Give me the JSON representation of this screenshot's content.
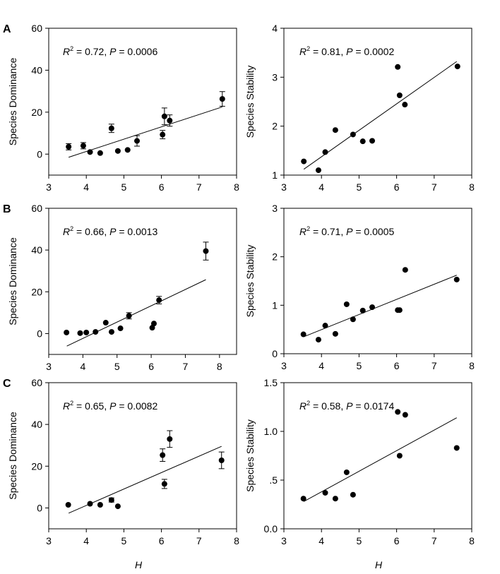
{
  "chart_data": [
    {
      "type": "scatter",
      "panel_label": "A",
      "xlabel": "",
      "ylabel": "Species Dominance",
      "xlim": [
        3,
        8
      ],
      "ylim": [
        -10,
        60
      ],
      "xticks": [
        "3",
        "4",
        "5",
        "6",
        "7",
        "8"
      ],
      "yticks": [
        "0",
        "20",
        "40",
        "60"
      ],
      "ytick_values": [
        0,
        20,
        40,
        60
      ],
      "annotation": {
        "r2": "0.72",
        "p": "0.0006"
      },
      "points": [
        {
          "x": 3.53,
          "y": 3.5,
          "err": 1.5
        },
        {
          "x": 3.92,
          "y": 4,
          "err": 1.5
        },
        {
          "x": 4.1,
          "y": 1,
          "err": 0
        },
        {
          "x": 4.37,
          "y": 0.5,
          "err": 0
        },
        {
          "x": 4.67,
          "y": 12.3,
          "err": 2
        },
        {
          "x": 4.84,
          "y": 1.5,
          "err": 0
        },
        {
          "x": 5.1,
          "y": 2,
          "err": 0
        },
        {
          "x": 5.35,
          "y": 6.3,
          "err": 2.5
        },
        {
          "x": 6.03,
          "y": 9.3,
          "err": 2
        },
        {
          "x": 6.08,
          "y": 18,
          "err": 4
        },
        {
          "x": 6.22,
          "y": 16,
          "err": 2.7
        },
        {
          "x": 7.62,
          "y": 26.3,
          "err": 3.5
        }
      ],
      "fit": [
        [
          3.53,
          -1.5
        ],
        [
          7.62,
          22.5
        ]
      ]
    },
    {
      "type": "scatter",
      "panel_label": "",
      "xlabel": "",
      "ylabel": "Species Stability",
      "xlim": [
        3,
        8
      ],
      "ylim": [
        1,
        4
      ],
      "xticks": [
        "3",
        "4",
        "5",
        "6",
        "7",
        "8"
      ],
      "yticks": [
        "1",
        "2",
        "3",
        "4"
      ],
      "ytick_values": [
        1,
        2,
        3,
        4
      ],
      "annotation": {
        "r2": "0.81",
        "p": "0.0002"
      },
      "points": [
        {
          "x": 3.53,
          "y": 1.28
        },
        {
          "x": 3.92,
          "y": 1.1
        },
        {
          "x": 4.1,
          "y": 1.47
        },
        {
          "x": 4.37,
          "y": 1.92
        },
        {
          "x": 4.84,
          "y": 1.83
        },
        {
          "x": 5.1,
          "y": 1.69
        },
        {
          "x": 5.35,
          "y": 1.7
        },
        {
          "x": 6.03,
          "y": 3.21
        },
        {
          "x": 6.08,
          "y": 2.63
        },
        {
          "x": 6.22,
          "y": 2.44
        },
        {
          "x": 7.62,
          "y": 3.22
        }
      ],
      "fit": [
        [
          3.53,
          1.12
        ],
        [
          7.6,
          3.32
        ]
      ]
    },
    {
      "type": "scatter",
      "panel_label": "B",
      "xlabel": "",
      "ylabel": "Species Dominance",
      "xlim": [
        3,
        8.5
      ],
      "ylim": [
        -10,
        60
      ],
      "xticks": [
        "3",
        "4",
        "5",
        "6",
        "7",
        "8"
      ],
      "yticks": [
        "0",
        "20",
        "40",
        "60"
      ],
      "ytick_values": [
        0,
        20,
        40,
        60
      ],
      "annotation": {
        "r2": "0.66",
        "p": "0.0013"
      },
      "points": [
        {
          "x": 3.52,
          "y": 0.5
        },
        {
          "x": 3.92,
          "y": 0.2
        },
        {
          "x": 4.1,
          "y": 0.5
        },
        {
          "x": 4.37,
          "y": 0.8
        },
        {
          "x": 4.67,
          "y": 5.2
        },
        {
          "x": 4.84,
          "y": 0.8
        },
        {
          "x": 5.1,
          "y": 2.5
        },
        {
          "x": 5.35,
          "y": 8.5,
          "err": 1.5
        },
        {
          "x": 6.03,
          "y": 2.8
        },
        {
          "x": 6.08,
          "y": 4.8
        },
        {
          "x": 6.23,
          "y": 16,
          "err": 1.8
        },
        {
          "x": 7.6,
          "y": 39.5,
          "err": 4.3
        }
      ],
      "fit": [
        [
          3.53,
          -6
        ],
        [
          7.6,
          25.8
        ]
      ]
    },
    {
      "type": "scatter",
      "panel_label": "",
      "xlabel": "",
      "ylabel": "Species Stability",
      "xlim": [
        3,
        8
      ],
      "ylim": [
        0,
        3
      ],
      "xticks": [
        "3",
        "4",
        "5",
        "6",
        "7",
        "8"
      ],
      "yticks": [
        "0",
        "1",
        "2",
        "3"
      ],
      "ytick_values": [
        0,
        1,
        2,
        3
      ],
      "annotation": {
        "r2": "0.71",
        "p": "0.0005"
      },
      "points": [
        {
          "x": 3.52,
          "y": 0.4
        },
        {
          "x": 3.92,
          "y": 0.29
        },
        {
          "x": 4.1,
          "y": 0.58
        },
        {
          "x": 4.37,
          "y": 0.41
        },
        {
          "x": 4.67,
          "y": 1.02
        },
        {
          "x": 4.84,
          "y": 0.71
        },
        {
          "x": 5.1,
          "y": 0.89
        },
        {
          "x": 5.35,
          "y": 0.96
        },
        {
          "x": 6.03,
          "y": 0.9
        },
        {
          "x": 6.08,
          "y": 0.9
        },
        {
          "x": 6.23,
          "y": 1.73
        },
        {
          "x": 7.6,
          "y": 1.53
        }
      ],
      "fit": [
        [
          3.53,
          0.35
        ],
        [
          7.6,
          1.62
        ]
      ]
    },
    {
      "type": "scatter",
      "panel_label": "C",
      "xlabel": "H",
      "ylabel": "Species Dominance",
      "xlim": [
        3,
        8
      ],
      "ylim": [
        -10,
        60
      ],
      "xticks": [
        "3",
        "4",
        "5",
        "6",
        "7",
        "8"
      ],
      "yticks": [
        "0",
        "20",
        "40",
        "60"
      ],
      "ytick_values": [
        0,
        20,
        40,
        60
      ],
      "annotation": {
        "r2": "0.65",
        "p": "0.0082"
      },
      "points": [
        {
          "x": 3.52,
          "y": 1.5
        },
        {
          "x": 4.1,
          "y": 2
        },
        {
          "x": 4.37,
          "y": 1.5
        },
        {
          "x": 4.67,
          "y": 3.8,
          "err": 1
        },
        {
          "x": 4.84,
          "y": 0.8
        },
        {
          "x": 6.03,
          "y": 25.3,
          "err": 3
        },
        {
          "x": 6.08,
          "y": 11.5,
          "err": 2.2
        },
        {
          "x": 6.22,
          "y": 33,
          "err": 4
        },
        {
          "x": 7.6,
          "y": 22.8,
          "err": 4
        }
      ],
      "fit": [
        [
          3.53,
          -2.5
        ],
        [
          7.6,
          29.5
        ]
      ]
    },
    {
      "type": "scatter",
      "panel_label": "",
      "xlabel": "H",
      "ylabel": "Species Stability",
      "xlim": [
        3,
        8
      ],
      "ylim": [
        0,
        1.5
      ],
      "xticks": [
        "3",
        "4",
        "5",
        "6",
        "7",
        "8"
      ],
      "yticks": [
        "0.0",
        ".5",
        "1.0",
        "1.5"
      ],
      "ytick_values": [
        0,
        0.5,
        1,
        1.5
      ],
      "annotation": {
        "r2": "0.58",
        "p": "0.0174"
      },
      "points": [
        {
          "x": 3.52,
          "y": 0.31
        },
        {
          "x": 4.1,
          "y": 0.37
        },
        {
          "x": 4.37,
          "y": 0.31
        },
        {
          "x": 4.67,
          "y": 0.58
        },
        {
          "x": 4.84,
          "y": 0.35
        },
        {
          "x": 6.03,
          "y": 1.2
        },
        {
          "x": 6.08,
          "y": 0.75
        },
        {
          "x": 6.23,
          "y": 1.17
        },
        {
          "x": 7.6,
          "y": 0.83
        }
      ],
      "fit": [
        [
          3.53,
          0.28
        ],
        [
          7.6,
          1.14
        ]
      ]
    }
  ]
}
